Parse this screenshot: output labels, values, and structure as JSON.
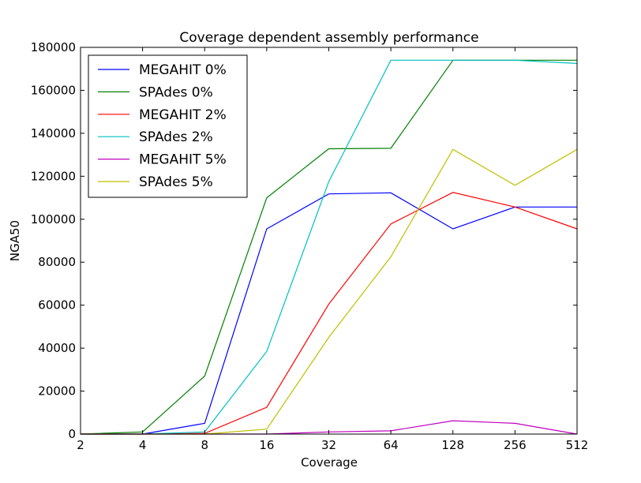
{
  "chart_data": {
    "type": "line",
    "title": "Coverage dependent assembly performance",
    "xlabel": "Coverage",
    "ylabel": "NGA50",
    "x": [
      2,
      4,
      8,
      16,
      32,
      64,
      128,
      256,
      512
    ],
    "x_scale": "log2",
    "x_tick_labels": [
      "2",
      "4",
      "8",
      "16",
      "32",
      "64",
      "128",
      "256",
      "512"
    ],
    "xlim": [
      2,
      512
    ],
    "ylim": [
      0,
      180000
    ],
    "y_ticks": [
      0,
      20000,
      40000,
      60000,
      80000,
      100000,
      120000,
      140000,
      160000,
      180000
    ],
    "y_tick_labels": [
      "0",
      "20000",
      "40000",
      "60000",
      "80000",
      "100000",
      "120000",
      "140000",
      "160000",
      "180000"
    ],
    "grid": false,
    "legend_position": "top-left",
    "series": [
      {
        "name": "MEGAHIT 0%",
        "color": "#0000ff",
        "values": [
          0,
          0,
          5000,
          95500,
          111800,
          112300,
          95500,
          105700,
          105700
        ]
      },
      {
        "name": "SPAdes 0%",
        "color": "#008000",
        "values": [
          0,
          1000,
          27000,
          110000,
          132800,
          133000,
          174000,
          174000,
          174000
        ]
      },
      {
        "name": "MEGAHIT 2%",
        "color": "#ff0000",
        "values": [
          0,
          0,
          300,
          12500,
          60500,
          97800,
          112500,
          105700,
          95500
        ]
      },
      {
        "name": "SPAdes 2%",
        "color": "#00bfbf",
        "values": [
          0,
          0,
          1000,
          38500,
          117500,
          174000,
          174000,
          174000,
          172500
        ]
      },
      {
        "name": "MEGAHIT 5%",
        "color": "#bf00bf",
        "values": [
          0,
          0,
          0,
          0,
          1000,
          1500,
          6200,
          5000,
          0
        ]
      },
      {
        "name": "SPAdes 5%",
        "color": "#bfbf00",
        "values": [
          0,
          0,
          0,
          2300,
          45000,
          82500,
          132500,
          115800,
          132500
        ]
      }
    ]
  }
}
